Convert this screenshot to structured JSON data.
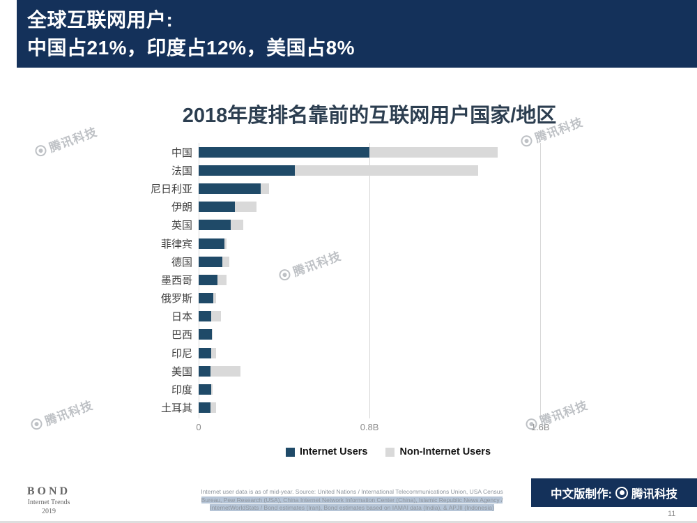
{
  "header": {
    "title_line1": "全球互联网用户:",
    "title_line2": "中国占21%，印度占12%，美国占8%"
  },
  "chart_data": {
    "type": "bar",
    "orientation": "horizontal",
    "stacked": true,
    "title": "2018年度排名靠前的互联网用户国家/地区",
    "categories": [
      "中国",
      "法国",
      "尼日利亚",
      "伊朗",
      "英国",
      "菲律宾",
      "德国",
      "墨西哥",
      "俄罗斯",
      "日本",
      "巴西",
      "印尼",
      "美国",
      "印度",
      "土耳其"
    ],
    "unit": "billions of people",
    "series": [
      {
        "name": "Internet Users",
        "color": "#1f4a68",
        "values": [
          0.8,
          0.45,
          0.29,
          0.17,
          0.15,
          0.12,
          0.11,
          0.088,
          0.068,
          0.06,
          0.063,
          0.058,
          0.054,
          0.06,
          0.056
        ]
      },
      {
        "name": "Non-Internet Users",
        "color": "#d9d9d9",
        "values": [
          0.6,
          0.86,
          0.04,
          0.1,
          0.06,
          0.01,
          0.035,
          0.043,
          0.015,
          0.046,
          0.004,
          0.024,
          0.142,
          0.005,
          0.026
        ]
      }
    ],
    "xlim": [
      0,
      1.632
    ],
    "x_ticks": [
      {
        "value": 0,
        "label": "0"
      },
      {
        "value": 0.8,
        "label": "0.8B"
      },
      {
        "value": 1.6,
        "label": "1.6B"
      }
    ],
    "legend_position": "bottom",
    "gridlines": true
  },
  "watermark": {
    "icon": "tencent-logo-icon",
    "text": "腾讯科技"
  },
  "footer": {
    "bond": {
      "name": "BOND",
      "line2": "Internet Trends",
      "line3": "2019"
    },
    "source_lines": [
      {
        "text": "Internet user data is as of mid-year.   Source: United Nations / International Telecommunications Union, USA Census",
        "highlighted": false
      },
      {
        "text": "Bureau,  Pew Research (USA), China Internet Network Information Center (China), Islamic Republic News Agency /",
        "highlighted": true
      },
      {
        "text": "InternetWorldStats / Bond estimates (Iran), Bond estimates based on IAMAI data (India), & APJII (Indonesia)",
        "highlighted": true
      }
    ],
    "credit": {
      "prefix": "中文版制作:",
      "brand": "腾讯科技"
    },
    "page_number": "11"
  },
  "colors": {
    "header_bg": "#14315a",
    "internet_bar": "#1f4a68",
    "non_internet_bar": "#d9d9d9",
    "credit_bg": "#14315a",
    "source_highlight": "#b6c5d7"
  }
}
